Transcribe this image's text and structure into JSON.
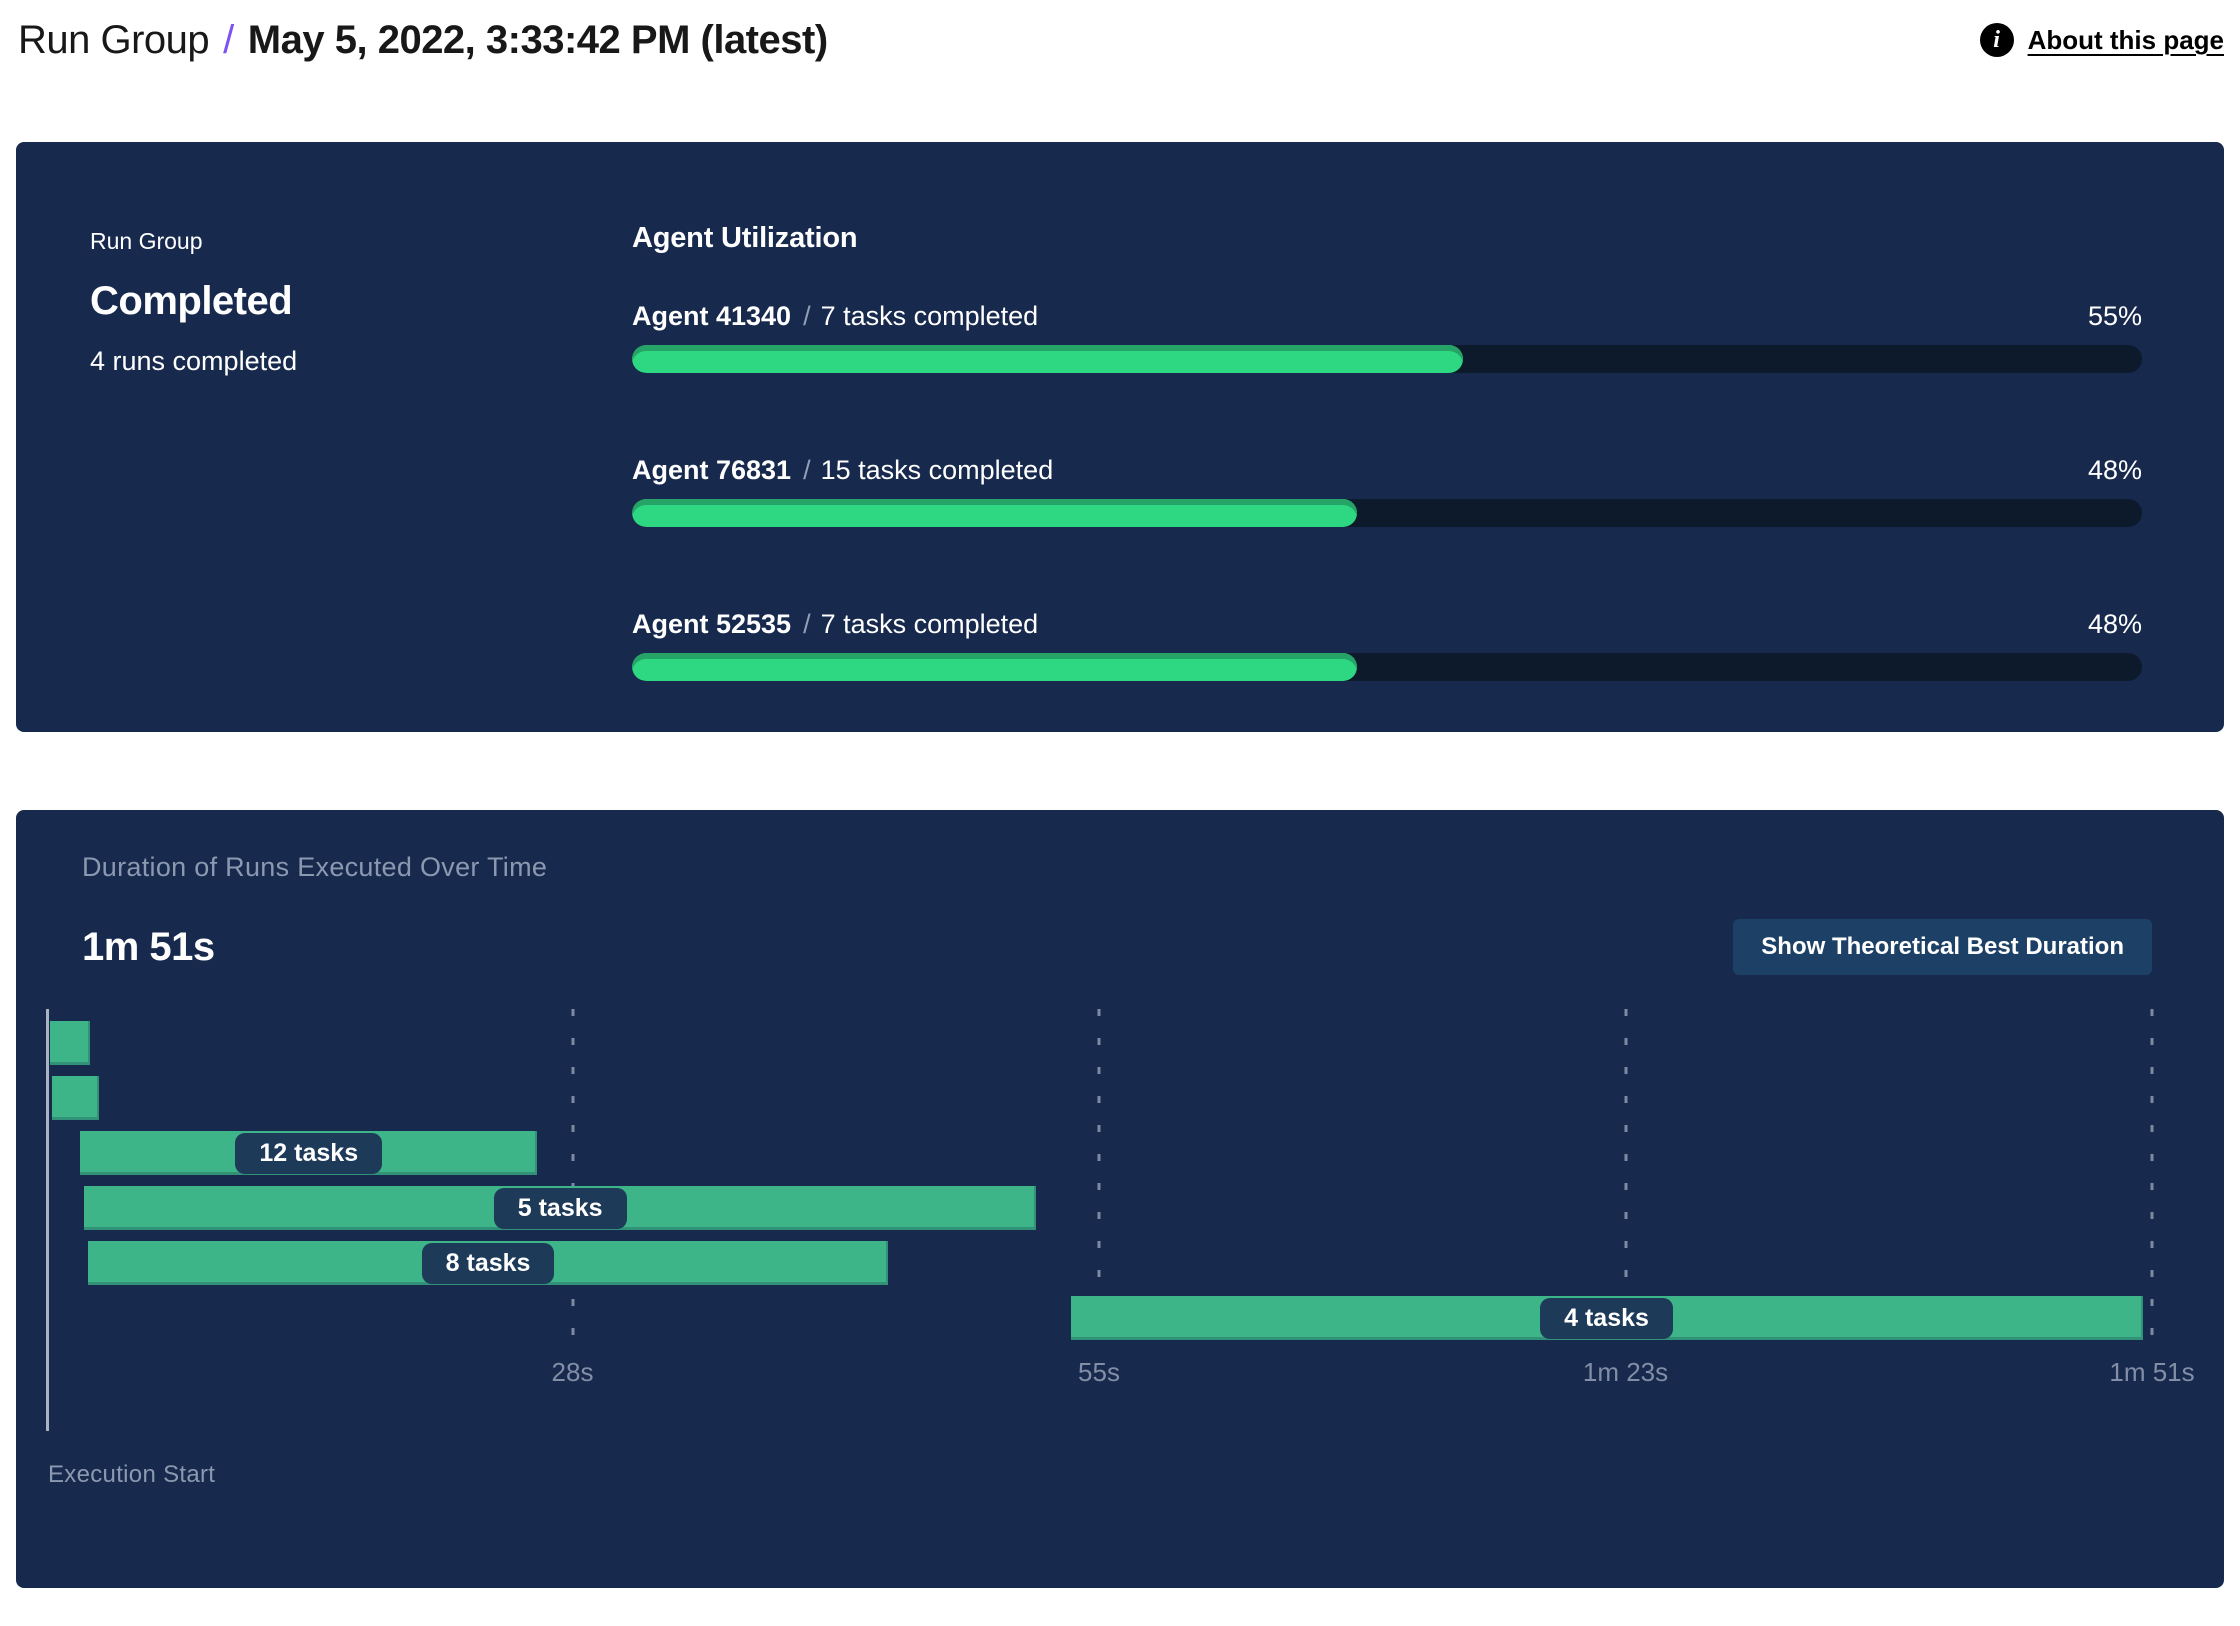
{
  "header": {
    "breadcrumb_root": "Run Group",
    "separator": "/",
    "title": "May 5, 2022, 3:33:42 PM (latest)",
    "about_link": "About this page"
  },
  "icons": {
    "info": "i"
  },
  "status_panel": {
    "group_label": "Run Group",
    "status": "Completed",
    "runs_summary": "4 runs completed",
    "utilization": {
      "title": "Agent Utilization",
      "separator": "/",
      "agents": [
        {
          "name": "Agent 41340",
          "tasks": "7 tasks completed",
          "percent": 55,
          "percent_label": "55%"
        },
        {
          "name": "Agent 76831",
          "tasks": "15 tasks completed",
          "percent": 48,
          "percent_label": "48%"
        },
        {
          "name": "Agent 52535",
          "tasks": "7 tasks completed",
          "percent": 48,
          "percent_label": "48%"
        }
      ]
    }
  },
  "duration_panel": {
    "title": "Duration of Runs Executed Over Time",
    "total_duration": "1m 51s",
    "button_label": "Show Theoretical Best Duration",
    "axis_label": "Execution Start"
  },
  "chart_data": {
    "type": "bar",
    "variant": "gantt-timeline",
    "title": "Duration of Runs Executed Over Time",
    "total_duration_label": "1m 51s",
    "x_range_s": [
      0,
      111
    ],
    "grid": "vertical-dashed",
    "legend": null,
    "x_ticks": [
      {
        "t_s": 27.75,
        "label": "28s"
      },
      {
        "t_s": 55.5,
        "label": "55s"
      },
      {
        "t_s": 83.25,
        "label": "1m 23s"
      },
      {
        "t_s": 111,
        "label": "1m 51s"
      }
    ],
    "runs": [
      {
        "start_s": 0.2,
        "end_s": 2.3,
        "label": null
      },
      {
        "start_s": 0.3,
        "end_s": 2.8,
        "label": null
      },
      {
        "start_s": 1.8,
        "end_s": 25.9,
        "label": "12 tasks"
      },
      {
        "start_s": 2.0,
        "end_s": 52.2,
        "label": "5 tasks"
      },
      {
        "start_s": 2.2,
        "end_s": 44.4,
        "label": "8 tasks"
      },
      {
        "start_s": 54.0,
        "end_s": 110.5,
        "label": "4 tasks"
      }
    ]
  },
  "colors": {
    "panel_bg": "#17294d",
    "progress_track": "#0d1a2b",
    "progress_fill": "#2ed883",
    "progress_fill_shade": "#26a366",
    "gantt_bar": "#3eb489",
    "label_pill_bg": "#1d3a58",
    "button_bg": "#1d4166",
    "breadcrumb_slash": "#7b52f4",
    "muted_text": "#8b99b0",
    "axis_line": "#a9b3c3"
  }
}
